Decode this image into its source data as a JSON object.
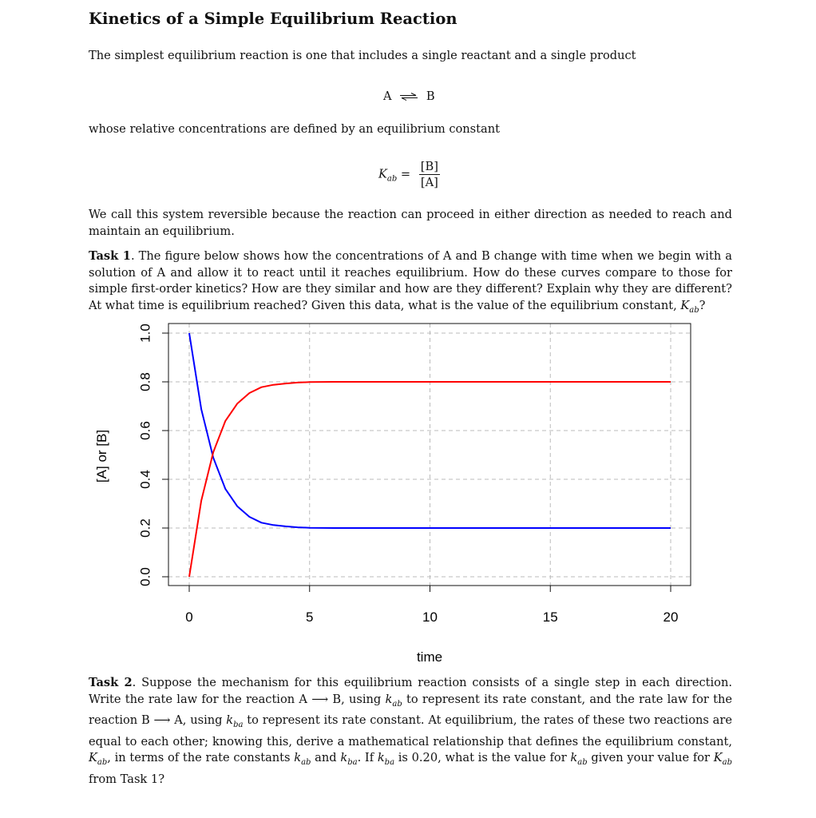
{
  "title": "Kinetics of a Simple Equilibrium Reaction",
  "intro": "The simplest equilibrium reaction is one that includes a single reactant and a single product",
  "reaction": {
    "left": "A",
    "right": "B"
  },
  "equilibrium_text": "whose relative concentrations are defined by an equilibrium constant",
  "equation": {
    "lhs": "K",
    "lhs_sub": "ab",
    "equals": "=",
    "numerator": "[B]",
    "denominator": "[A]"
  },
  "reversible_text": "We call this system reversible because the reaction can proceed in either direction as needed to reach and maintain an equilibrium.",
  "task1": {
    "label": "Task 1",
    "text": ". The figure below shows how the concentrations of A and B change with time when we begin with a solution of A and allow it to react until it reaches equilibrium. How do these curves compare to those for simple first-order kinetics? How are they similar and how are they different? Explain why they are different? At what time is equilibrium reached? Given this data, what is the value of the equilibrium constant, ",
    "k_sym": "K",
    "k_sub": "ab",
    "end": "?"
  },
  "task2": {
    "label": "Task 2",
    "p1": ". Suppose the mechanism for this equilibrium reaction consists of a single step in each direction. Write the rate law for the reaction A ",
    "arrow": "⟶",
    "p2": " B, using ",
    "kab": "k",
    "kab_sub": "ab",
    "p3": " to represent its rate constant, and the rate law for the reaction B ",
    "p4": " A, using ",
    "kba": "k",
    "kba_sub": "ba",
    "p5": " to represent its rate constant. At equilibrium, the rates of these two reactions are equal to each other; knowing this, derive a mathematical relationship that defines the equilibrium constant, ",
    "Kab": "K",
    "Kab_sub": "ab",
    "p6": ", in terms of the rate constants ",
    "p7": " and ",
    "p8": ". If ",
    "p9": " is 0.20, what is the value for ",
    "p10": " given your value for ",
    "p11": " from Task 1?"
  },
  "chart_data": {
    "type": "line",
    "title": "",
    "xlabel": "time",
    "ylabel": "[A] or [B]",
    "xlim": [
      0,
      20
    ],
    "ylim": [
      0,
      1
    ],
    "xticks": [
      "0",
      "5",
      "10",
      "15",
      "20"
    ],
    "yticks": [
      "0.0",
      "0.2",
      "0.4",
      "0.6",
      "0.8",
      "1.0"
    ],
    "grid": true,
    "equilibrium": {
      "A": 0.2,
      "B": 0.8
    },
    "series": [
      {
        "color": "#0000ff",
        "x": [
          0,
          0.5,
          1,
          1.5,
          2,
          2.5,
          3,
          3.5,
          4,
          4.5,
          5,
          6,
          8,
          10,
          15,
          20
        ],
        "y": [
          1.0,
          0.688,
          0.488,
          0.361,
          0.289,
          0.246,
          0.222,
          0.212,
          0.207,
          0.203,
          0.201,
          0.2,
          0.2,
          0.2,
          0.2,
          0.2
        ]
      },
      {
        "color": "#ff0000",
        "x": [
          0,
          0.5,
          1,
          1.5,
          2,
          2.5,
          3,
          3.5,
          4,
          4.5,
          5,
          6,
          8,
          10,
          15,
          20
        ],
        "y": [
          0.0,
          0.312,
          0.512,
          0.639,
          0.711,
          0.754,
          0.778,
          0.788,
          0.793,
          0.797,
          0.799,
          0.8,
          0.8,
          0.8,
          0.8,
          0.8
        ]
      }
    ]
  }
}
